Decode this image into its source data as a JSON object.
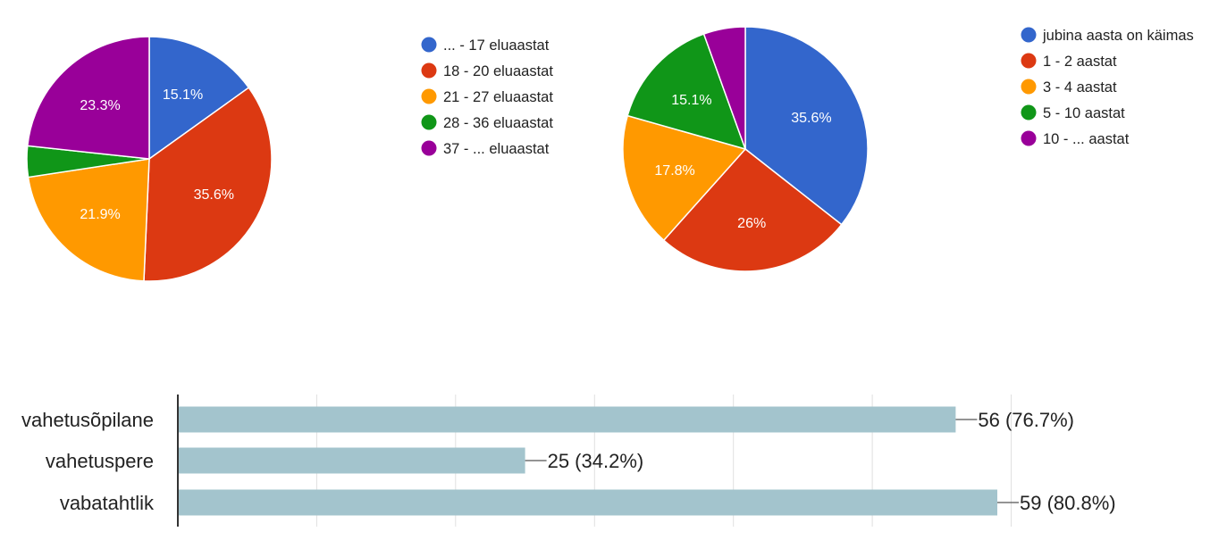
{
  "chart_data": [
    {
      "type": "pie",
      "slices": [
        {
          "label": "... - 17 eluaastat",
          "value": 15.1,
          "color": "#3366cc",
          "data_label": "15.1%"
        },
        {
          "label": "18 - 20 eluaastat",
          "value": 35.6,
          "color": "#dc3912",
          "data_label": "35.6%"
        },
        {
          "label": "21 - 27 eluaastat",
          "value": 21.9,
          "color": "#ff9900",
          "data_label": "21.9%"
        },
        {
          "label": "28 - 36 eluaastat",
          "value": 4.1,
          "color": "#109618",
          "data_label": ""
        },
        {
          "label": "37 - ... eluaastat",
          "value": 23.3,
          "color": "#990099",
          "data_label": "23.3%"
        }
      ],
      "start_angle_deg": 90,
      "direction": "clockwise",
      "legend_position": "right"
    },
    {
      "type": "pie",
      "slices": [
        {
          "label": "jubina aasta on käimas",
          "value": 35.6,
          "color": "#3366cc",
          "data_label": "35.6%"
        },
        {
          "label": "1 - 2 aastat",
          "value": 26.0,
          "color": "#dc3912",
          "data_label": "26%"
        },
        {
          "label": "3 - 4 aastat",
          "value": 17.8,
          "color": "#ff9900",
          "data_label": "17.8%"
        },
        {
          "label": "5 - 10 aastat",
          "value": 15.1,
          "color": "#109618",
          "data_label": "15.1%"
        },
        {
          "label": "10 - ... aastat",
          "value": 5.5,
          "color": "#990099",
          "data_label": ""
        }
      ],
      "start_angle_deg": 90,
      "direction": "clockwise",
      "legend_position": "right"
    },
    {
      "type": "bar",
      "orientation": "horizontal",
      "categories": [
        "vahetusõpilane",
        "vahetuspere",
        "vabatahtlik"
      ],
      "values": [
        56,
        25,
        59
      ],
      "data_labels": [
        "56 (76.7%)",
        "25 (34.2%)",
        "59 (80.8%)"
      ],
      "bar_color": "#a3c4cd",
      "xlim": [
        0,
        60
      ],
      "grid": true
    }
  ]
}
